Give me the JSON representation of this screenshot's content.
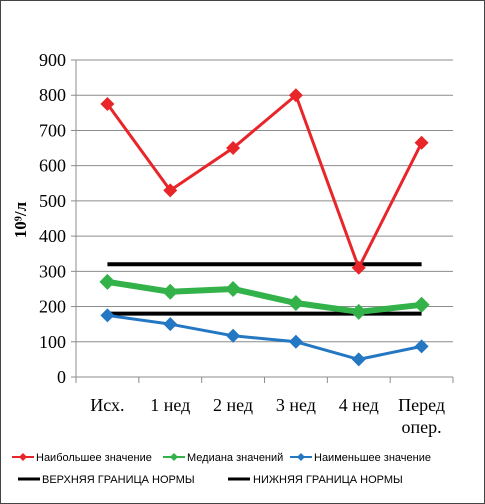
{
  "chart_data": {
    "type": "line",
    "ylabel": "10⁹/л",
    "ylim": [
      0,
      900
    ],
    "yticks": [
      0,
      100,
      200,
      300,
      400,
      500,
      600,
      700,
      800,
      900
    ],
    "categories": [
      [
        "Исх."
      ],
      [
        "1 нед"
      ],
      [
        "2 нед"
      ],
      [
        "3 нед"
      ],
      [
        "4 нед"
      ],
      [
        "Перед",
        "опер."
      ]
    ],
    "grid": true,
    "legend_position": "bottom",
    "series": [
      {
        "name": "Наибольшее значение",
        "color": "#e8262a",
        "marker": "diamond",
        "width": 3,
        "values": [
          775,
          530,
          650,
          800,
          310,
          665
        ]
      },
      {
        "name": "Медиана значений",
        "color": "#33b24a",
        "marker": "diamond",
        "width": 6,
        "values": [
          270,
          242,
          250,
          210,
          185,
          205
        ]
      },
      {
        "name": "Наименьшее значение",
        "color": "#2477c2",
        "marker": "diamond",
        "width": 3,
        "values": [
          175,
          150,
          117,
          100,
          50,
          87
        ]
      },
      {
        "name": "ВЕРХНЯЯ ГРАНИЦА НОРМЫ",
        "color": "#000000",
        "marker": "none",
        "width": 4,
        "values": [
          320,
          320,
          320,
          320,
          320,
          320
        ]
      },
      {
        "name": "НИЖНЯЯ ГРАНИЦА НОРМЫ",
        "color": "#000000",
        "marker": "none",
        "width": 4,
        "values": [
          180,
          180,
          180,
          180,
          180,
          180
        ]
      }
    ]
  }
}
